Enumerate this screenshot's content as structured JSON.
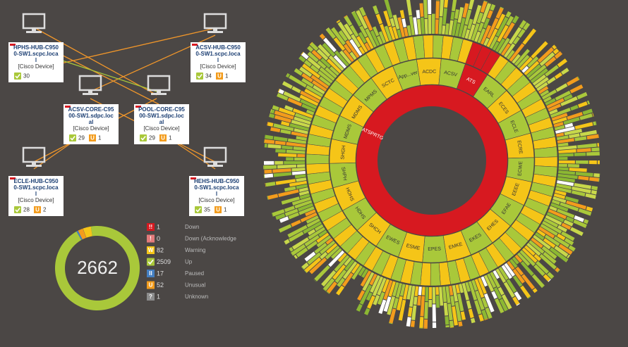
{
  "topology": {
    "unusual_icon": "U",
    "nodes": [
      {
        "name_lines": [
          "HPHS-HUB-C950",
          "0-SW1.scpc.loca",
          "l"
        ],
        "type": "[Cisco Device]",
        "up": 30
      },
      {
        "name_lines": [
          "ACSV-HUB-C950",
          "0-SW1.scpc.loca",
          "l"
        ],
        "type": "[Cisco Device]",
        "up": 34,
        "unusual": 1
      },
      {
        "name_lines": [
          "ACSV-CORE-C95",
          "00-SW1.sdpc.loc",
          "al"
        ],
        "type": "[Cisco Device]",
        "up": 29,
        "unusual": 1
      },
      {
        "name_lines": [
          "POOL-CORE-C95",
          "00-SW1.sdpc.loc",
          "al"
        ],
        "type": "[Cisco Device]",
        "up": 29,
        "unusual": 1
      },
      {
        "name_lines": [
          "ECLE-HUB-C950",
          "0-SW1.scpc.loca",
          "l"
        ],
        "type": "[Cisco Device]",
        "up": 28,
        "unusual": 2
      },
      {
        "name_lines": [
          "HEHS-HUB-C950",
          "0-SW1.scpc.loca",
          "l"
        ],
        "type": "[Cisco Device]",
        "up": 35,
        "unusual": 1
      }
    ]
  },
  "status_summary": {
    "total": 2662,
    "items": [
      {
        "icon": "!!",
        "count": 1,
        "label": "Down",
        "color": "#d71920"
      },
      {
        "icon": "!",
        "count": 0,
        "label": "Down (Acknowledge",
        "color": "#e37b7b"
      },
      {
        "icon": "W",
        "count": 82,
        "label": "Warning",
        "color": "#f5c518"
      },
      {
        "count": 2509,
        "label": "Up",
        "color": "#a9c83a"
      },
      {
        "icon": "II",
        "count": 17,
        "label": "Paused",
        "color": "#447fc1"
      },
      {
        "icon": "U",
        "count": 52,
        "label": "Unusual",
        "color": "#f39c1c"
      },
      {
        "icon": "?",
        "count": 1,
        "label": "Unknown",
        "color": "#8c8c8c"
      }
    ]
  },
  "sunburst": {
    "root": "ATSPRTG",
    "segments": [
      {
        "label": "ACDC"
      },
      {
        "label": "ACSV"
      },
      {
        "label": "ATS"
      },
      {
        "label": "EARL"
      },
      {
        "label": "ECES"
      },
      {
        "label": "ECLE"
      },
      {
        "label": "ECRE"
      },
      {
        "label": "ECWE"
      },
      {
        "label": "EEEE"
      },
      {
        "label": "EFAE"
      },
      {
        "label": "EHES"
      },
      {
        "label": "EKES"
      },
      {
        "label": "EMKE"
      },
      {
        "label": "EPES"
      },
      {
        "label": "ESME"
      },
      {
        "label": "EWES"
      },
      {
        "label": "SHCH"
      },
      {
        "label": "HDHS"
      },
      {
        "label": "HOHS"
      },
      {
        "label": "SHPH"
      },
      {
        "label": "SHGH"
      },
      {
        "label": "MDMS"
      },
      {
        "label": "MDMS"
      },
      {
        "label": "MPMS"
      },
      {
        "label": "SCTC"
      },
      {
        "label": "App...ver"
      }
    ]
  }
}
